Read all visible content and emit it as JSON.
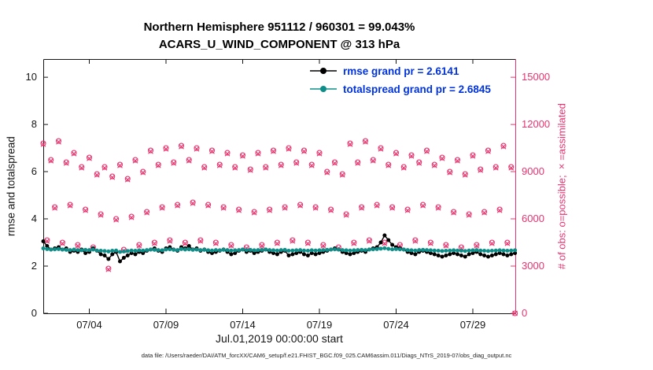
{
  "chart_data": {
    "type": "line-scatter-dual-axis",
    "title": "Northern Hemisphere 951112 / 960301 = 99.043%",
    "subtitle": "ACARS_U_WIND_COMPONENT @ 313 hPa",
    "xlabel": "Jul.01,2019 00:00:00 start",
    "ylabel_left": "rmse and totalspread",
    "ylabel_right": "# of obs: o=possible; ×=assimilated",
    "caption": "data file: /Users/raeder/DAI/ATM_forcXX/CAM6_setup/f.e21.FHIST_BGC.f09_025.CAM6assim.011/Diags_NTrS_2019-07/obs_diag_output.nc",
    "xlim_days": [
      1,
      31.77
    ],
    "ylim_left": [
      0,
      10.77
    ],
    "ylim_right": [
      0,
      16155
    ],
    "yticks_left": [
      0,
      2,
      4,
      6,
      8,
      10
    ],
    "yticks_right": [
      0,
      3000,
      6000,
      9000,
      12000,
      15000
    ],
    "xticks": [
      {
        "day": 4,
        "label": "07/04"
      },
      {
        "day": 9,
        "label": "07/09"
      },
      {
        "day": 14,
        "label": "07/14"
      },
      {
        "day": 19,
        "label": "07/19"
      },
      {
        "day": 24,
        "label": "07/24"
      },
      {
        "day": 29,
        "label": "07/29"
      }
    ],
    "x_days": {
      "start": 1.0,
      "step": 0.25,
      "count": 124
    },
    "grid": false,
    "legend": {
      "position": "north",
      "text_color": "#0033dd",
      "entries": [
        {
          "series": "rmse",
          "label": "rmse grand pr = 2.6141"
        },
        {
          "series": "totalspread",
          "label": "totalspread grand pr = 2.6845"
        }
      ]
    },
    "colors": {
      "rmse": "#000000",
      "totalspread": "#0e8e89",
      "obs": "#e8336e",
      "axis": "#151515"
    },
    "series": [
      {
        "name": "rmse",
        "axis": "left",
        "type": "line",
        "marker": "dot",
        "color": "#000000",
        "values": [
          3.05,
          2.85,
          2.7,
          2.75,
          2.8,
          2.7,
          2.75,
          2.6,
          2.65,
          2.6,
          2.7,
          2.55,
          2.6,
          2.75,
          2.65,
          2.5,
          2.45,
          2.3,
          2.5,
          2.6,
          2.2,
          2.35,
          2.45,
          2.55,
          2.5,
          2.6,
          2.55,
          2.65,
          2.7,
          2.75,
          2.65,
          2.6,
          2.75,
          2.8,
          2.7,
          2.65,
          2.8,
          2.75,
          2.85,
          2.7,
          2.75,
          2.65,
          2.7,
          2.6,
          2.55,
          2.6,
          2.65,
          2.7,
          2.6,
          2.5,
          2.55,
          2.65,
          2.7,
          2.6,
          2.65,
          2.55,
          2.6,
          2.65,
          2.7,
          2.6,
          2.55,
          2.5,
          2.6,
          2.65,
          2.45,
          2.5,
          2.55,
          2.6,
          2.5,
          2.45,
          2.55,
          2.5,
          2.55,
          2.6,
          2.65,
          2.7,
          2.75,
          2.7,
          2.6,
          2.55,
          2.5,
          2.55,
          2.6,
          2.65,
          2.6,
          2.7,
          2.75,
          2.8,
          3.0,
          3.3,
          3.1,
          2.9,
          2.8,
          2.75,
          2.7,
          2.6,
          2.55,
          2.5,
          2.6,
          2.65,
          2.6,
          2.55,
          2.5,
          2.45,
          2.4,
          2.45,
          2.5,
          2.55,
          2.5,
          2.45,
          2.4,
          2.5,
          2.55,
          2.6,
          2.5,
          2.45,
          2.4,
          2.45,
          2.5,
          2.55,
          2.5,
          2.45,
          2.5,
          2.55
        ]
      },
      {
        "name": "totalspread",
        "axis": "left",
        "type": "line",
        "marker": "dot",
        "color": "#0e8e89",
        "values": [
          2.75,
          2.72,
          2.7,
          2.71,
          2.72,
          2.7,
          2.69,
          2.68,
          2.7,
          2.68,
          2.67,
          2.69,
          2.68,
          2.7,
          2.66,
          2.65,
          2.64,
          2.62,
          2.65,
          2.66,
          2.6,
          2.62,
          2.64,
          2.66,
          2.65,
          2.67,
          2.66,
          2.68,
          2.7,
          2.69,
          2.68,
          2.67,
          2.7,
          2.71,
          2.69,
          2.68,
          2.72,
          2.7,
          2.71,
          2.69,
          2.7,
          2.68,
          2.69,
          2.67,
          2.66,
          2.68,
          2.67,
          2.69,
          2.68,
          2.66,
          2.67,
          2.68,
          2.7,
          2.68,
          2.69,
          2.67,
          2.68,
          2.69,
          2.7,
          2.68,
          2.67,
          2.66,
          2.68,
          2.69,
          2.65,
          2.66,
          2.67,
          2.68,
          2.66,
          2.65,
          2.67,
          2.66,
          2.67,
          2.68,
          2.69,
          2.7,
          2.71,
          2.7,
          2.68,
          2.67,
          2.66,
          2.67,
          2.68,
          2.69,
          2.68,
          2.7,
          2.71,
          2.72,
          2.74,
          2.76,
          2.73,
          2.71,
          2.72,
          2.71,
          2.7,
          2.68,
          2.67,
          2.66,
          2.68,
          2.69,
          2.68,
          2.67,
          2.66,
          2.65,
          2.64,
          2.65,
          2.66,
          2.67,
          2.66,
          2.65,
          2.64,
          2.66,
          2.67,
          2.68,
          2.66,
          2.65,
          2.64,
          2.65,
          2.66,
          2.67,
          2.66,
          2.65,
          2.66,
          2.67
        ]
      },
      {
        "name": "obs_possible",
        "axis": "right",
        "type": "scatter",
        "marker": "circle",
        "color": "#e8336e",
        "values": [
          10800,
          4650,
          9750,
          6750,
          10950,
          4500,
          9600,
          6900,
          10200,
          4350,
          9300,
          6600,
          9900,
          4200,
          8850,
          6300,
          9300,
          2850,
          8700,
          6000,
          9450,
          4050,
          8550,
          6150,
          9750,
          4350,
          9000,
          6450,
          10350,
          4500,
          9450,
          6750,
          10500,
          4650,
          9600,
          6900,
          10650,
          4500,
          9750,
          7050,
          10500,
          4650,
          9300,
          6900,
          10350,
          4500,
          9450,
          6750,
          10200,
          4350,
          9300,
          6600,
          10050,
          4200,
          9150,
          6450,
          10200,
          4350,
          9300,
          6600,
          10350,
          4500,
          9450,
          6750,
          10500,
          4650,
          9600,
          6900,
          10350,
          4500,
          9450,
          6750,
          10200,
          4350,
          9000,
          6600,
          9600,
          4200,
          8850,
          6300,
          10800,
          4500,
          9600,
          6750,
          10950,
          4650,
          9750,
          6900,
          10500,
          4500,
          9450,
          6750,
          10200,
          4350,
          9300,
          6600,
          10050,
          4650,
          9600,
          6900,
          10350,
          4500,
          9450,
          6750,
          9900,
          4350,
          9000,
          6450,
          9750,
          4200,
          8850,
          6300,
          10050,
          4350,
          9150,
          6450,
          10350,
          4500,
          9300,
          6600,
          10650,
          4500,
          9300,
          0
        ]
      },
      {
        "name": "obs_assimilated",
        "axis": "right",
        "type": "scatter",
        "marker": "cross",
        "color": "#e8336e",
        "values": [
          10740,
          4590,
          9690,
          6690,
          10890,
          4440,
          9540,
          6840,
          10140,
          4290,
          9240,
          6540,
          9840,
          4140,
          8790,
          6240,
          9240,
          2790,
          8640,
          5940,
          9390,
          3990,
          8490,
          6090,
          9690,
          4290,
          8940,
          6390,
          10290,
          4440,
          9390,
          6690,
          10440,
          4590,
          9540,
          6840,
          10590,
          4440,
          9690,
          6990,
          10440,
          4590,
          9240,
          6840,
          10290,
          4440,
          9390,
          6690,
          10140,
          4290,
          9240,
          6540,
          9990,
          4140,
          9090,
          6390,
          10140,
          4290,
          9240,
          6540,
          10290,
          4440,
          9390,
          6690,
          10440,
          4590,
          9540,
          6840,
          10290,
          4440,
          9390,
          6690,
          10140,
          4290,
          8940,
          6540,
          9540,
          4140,
          8790,
          6240,
          10740,
          4440,
          9540,
          6690,
          10890,
          4590,
          9690,
          6840,
          10440,
          4440,
          9390,
          6690,
          10140,
          4290,
          9240,
          6540,
          9990,
          4590,
          9540,
          6840,
          10290,
          4440,
          9390,
          6690,
          9840,
          4290,
          8940,
          6390,
          9690,
          4140,
          8790,
          6240,
          9990,
          4290,
          9090,
          6390,
          10290,
          4440,
          9240,
          6540,
          10590,
          4440,
          9240,
          0
        ]
      }
    ]
  }
}
